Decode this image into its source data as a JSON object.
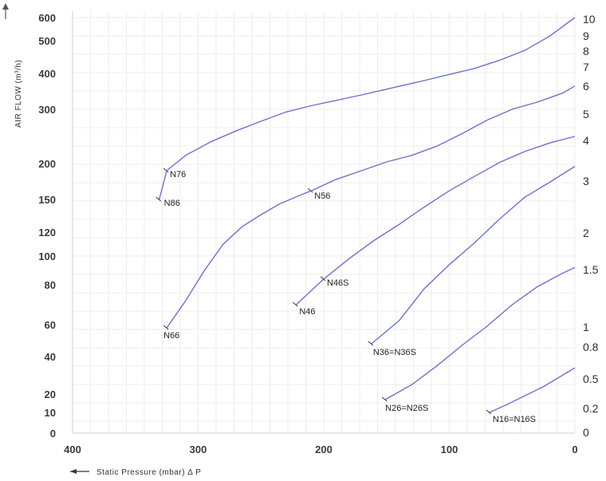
{
  "chart_data": {
    "type": "line",
    "xlabel": "Static Pressure (mbar) Δ P",
    "ylabel_left": "AIR FLOW (m³/h)",
    "x_ticks": [
      "400",
      "300",
      "200",
      "100",
      "0"
    ],
    "y_ticks_left": [
      "600",
      "500",
      "400",
      "300",
      "200",
      "150",
      "120",
      "100",
      "80",
      "60",
      "40",
      "20",
      "10",
      "0"
    ],
    "y_ticks_right": [
      "10",
      "9",
      "8",
      "7",
      "6",
      "5",
      "4",
      "3",
      "2",
      "1.5",
      "1",
      "0.8",
      "0.5",
      "0.2",
      "0"
    ],
    "xlim": [
      400,
      0
    ],
    "grid": true,
    "series": [
      {
        "name": "N76",
        "x": [
          325,
          310,
          290,
          270,
          250,
          230,
          210,
          190,
          170,
          150,
          120,
          100,
          80,
          60,
          40,
          20,
          0
        ],
        "y": [
          190,
          215,
          240,
          260,
          278,
          295,
          310,
          325,
          340,
          356,
          380,
          397,
          415,
          440,
          470,
          520,
          600
        ]
      },
      {
        "name": "N86",
        "x": [
          331,
          325
        ],
        "y": [
          150,
          190
        ]
      },
      {
        "name": "N56",
        "x": [
          210,
          190,
          170,
          150,
          130,
          110,
          90,
          70,
          50,
          30,
          10,
          0
        ],
        "y": [
          162,
          178,
          190,
          203,
          215,
          232,
          255,
          280,
          300,
          320,
          345,
          365
        ]
      },
      {
        "name": "N66",
        "x": [
          325,
          310,
          295,
          280,
          265,
          250,
          235,
          220,
          210
        ],
        "y": [
          58,
          72,
          90,
          110,
          125,
          136,
          146,
          155,
          162
        ]
      },
      {
        "name": "N46",
        "x": [
          222,
          200
        ],
        "y": [
          70,
          84
        ]
      },
      {
        "name": "N46S",
        "x": [
          200,
          180,
          160,
          140,
          120,
          100,
          80,
          60,
          40,
          20,
          0
        ],
        "y": [
          84,
          98,
          113,
          127,
          143,
          162,
          182,
          202,
          222,
          238,
          250
        ]
      },
      {
        "name": "N36=N36S",
        "x": [
          162,
          140,
          120,
          100,
          80,
          60,
          40,
          20,
          0
        ],
        "y": [
          48,
          62,
          78,
          94,
          111,
          132,
          153,
          174,
          196
        ]
      },
      {
        "name": "N26=N26S",
        "x": [
          151,
          130,
          110,
          90,
          70,
          50,
          30,
          10,
          0
        ],
        "y": [
          17,
          25,
          35,
          47,
          59,
          70,
          79,
          88,
          92
        ]
      },
      {
        "name": "N16=N16S",
        "x": [
          68,
          55,
          40,
          25,
          10,
          0
        ],
        "y": [
          10,
          14,
          19,
          24,
          30,
          34
        ]
      }
    ]
  }
}
